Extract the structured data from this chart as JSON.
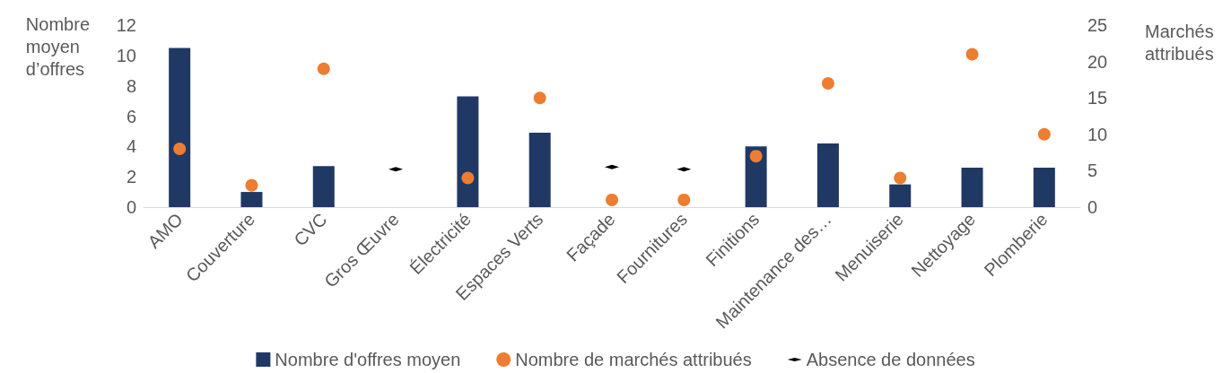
{
  "chart_data": {
    "type": "bar",
    "categories": [
      "AMO",
      "Couverture",
      "CVC",
      "Gros Œuvre",
      "Électricité",
      "Espaces Verts",
      "Façade",
      "Fournitures",
      "Finitions",
      "Maintenance des…",
      "Menuiserie",
      "Nettoyage",
      "Plomberie"
    ],
    "ylabel": "Nombre moyen d’offres",
    "y2label": "Marchés attribués",
    "ylim": [
      0,
      12
    ],
    "yticks": [
      0,
      2,
      4,
      6,
      8,
      10,
      12
    ],
    "y2lim": [
      0,
      25
    ],
    "y2ticks": [
      0,
      5,
      10,
      15,
      20,
      25
    ],
    "series": [
      {
        "name": "Nombre d'offres moyen",
        "color": "#203864",
        "values": [
          10.5,
          1.0,
          2.7,
          null,
          7.3,
          4.9,
          null,
          null,
          4.0,
          4.2,
          1.5,
          2.6,
          2.6
        ]
      },
      {
        "name": "Nombre de marchés attribués",
        "type": "scatter",
        "axis": "y2",
        "marker": "circle",
        "color": "#ed7d31",
        "values": [
          8,
          3,
          19,
          null,
          4,
          15,
          1,
          1,
          7,
          17,
          4,
          21,
          10
        ]
      },
      {
        "name": "Absence de données",
        "type": "scatter",
        "axis": "y2",
        "marker": "diamond",
        "color": "#000000",
        "values": [
          null,
          null,
          null,
          5.2,
          null,
          null,
          5.5,
          5.2,
          null,
          null,
          null,
          null,
          null
        ]
      }
    ],
    "legend": "bottom",
    "grid": false
  }
}
